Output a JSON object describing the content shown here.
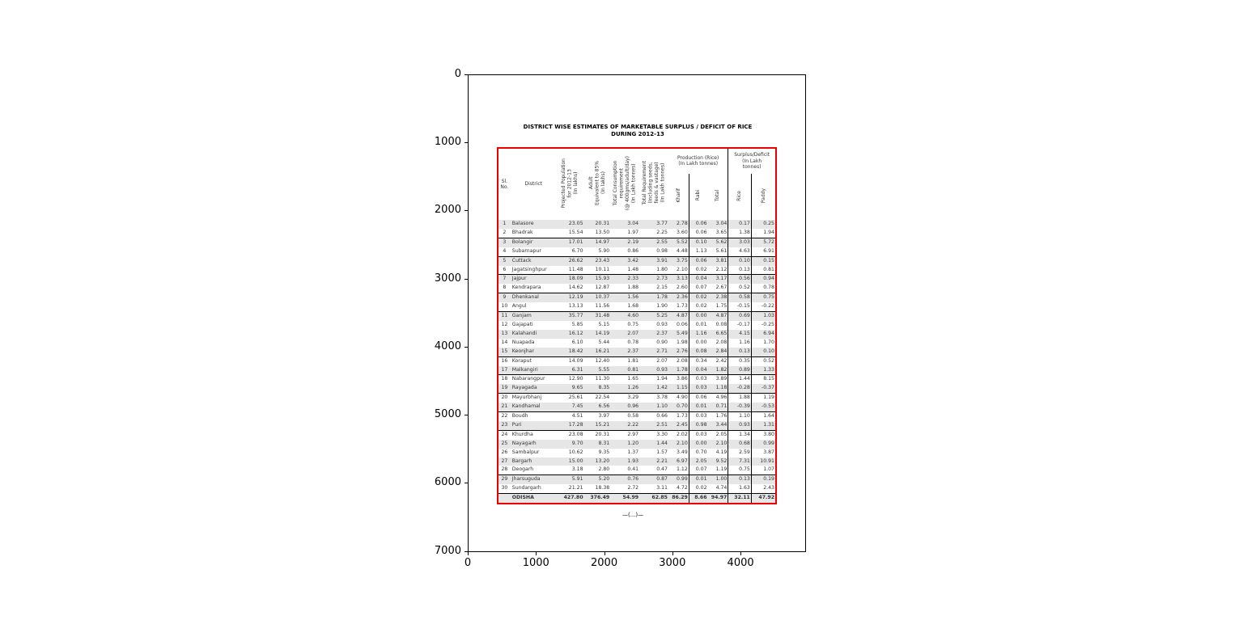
{
  "axes": {
    "xticks": [
      "0",
      "1000",
      "2000",
      "3000",
      "4000"
    ],
    "yticks": [
      "0",
      "1000",
      "2000",
      "3000",
      "4000",
      "5000",
      "6000",
      "7000"
    ],
    "xlim": [
      0,
      4960
    ],
    "ylim": [
      7016,
      0
    ]
  },
  "document": {
    "title_line1": "DISTRICT WISE ESTIMATES OF MARKETABLE SURPLUS / DEFICIT OF RICE",
    "title_line2": "DURING 2012-13",
    "headers": {
      "sl": "Sl.\nNo.",
      "district": "District",
      "population": "Projected Population\nfor 2012-13\n(In lakhs)",
      "adult": "Adult\nEquivalent to 85%\n(In lakhs)",
      "consumption": "Total Consumption\nrequirement\n(@ 400gms/adult/day)\n(In Lakh tonnes)",
      "requirement": "Total Requirement\n(Including seeds,\nfeeds & vastage)\n(In Lakh tonnes)",
      "production": "Production (Rice)\n(In Lakh tonnes)",
      "kharif": "Kharif",
      "rabi": "Rabi",
      "total": "Total",
      "surplus": "Surplus/Deficit\n(In Lakh\ntonnes)",
      "rice": "Rice",
      "paddy": "Paddy"
    },
    "rows": [
      [
        "1",
        "Balasore",
        "23.05",
        "20.31",
        "3.04",
        "3.77",
        "2.78",
        "0.06",
        "3.04",
        "0.17",
        "0.25"
      ],
      [
        "2",
        "Bhadrak",
        "15.54",
        "13.50",
        "1.97",
        "2.25",
        "3.60",
        "0.06",
        "3.65",
        "1.38",
        "1.94"
      ],
      [
        "3",
        "Bolangir",
        "17.01",
        "14.97",
        "2.19",
        "2.55",
        "5.52",
        "0.10",
        "5.62",
        "3.03",
        "5.72"
      ],
      [
        "4",
        "Subarnapur",
        "6.70",
        "5.90",
        "0.86",
        "0.98",
        "4.48",
        "1.13",
        "5.61",
        "4.63",
        "6.91"
      ],
      [
        "5",
        "Cuttack",
        "26.62",
        "23.43",
        "3.42",
        "3.91",
        "3.75",
        "0.06",
        "3.81",
        "0.10",
        "0.15"
      ],
      [
        "6",
        "Jagatsinghpur",
        "11.48",
        "10.11",
        "1.48",
        "1.80",
        "2.10",
        "0.02",
        "2.12",
        "0.13",
        "0.81"
      ],
      [
        "7",
        "Jajpur",
        "18.09",
        "15.93",
        "2.33",
        "2.73",
        "3.13",
        "0.04",
        "3.17",
        "0.56",
        "0.94"
      ],
      [
        "8",
        "Kendrapara",
        "14.62",
        "12.87",
        "1.88",
        "2.15",
        "2.60",
        "0.07",
        "2.67",
        "0.52",
        "0.78"
      ],
      [
        "9",
        "Dhenkanal",
        "12.19",
        "10.37",
        "1.56",
        "1.78",
        "2.36",
        "0.02",
        "2.38",
        "0.58",
        "0.75"
      ],
      [
        "10",
        "Angul",
        "13.13",
        "11.56",
        "1.68",
        "1.90",
        "1.73",
        "0.02",
        "1.75",
        "-0.15",
        "-0.22"
      ],
      [
        "11",
        "Ganjam",
        "35.77",
        "31.48",
        "4.60",
        "5.25",
        "4.87",
        "0.00",
        "4.87",
        "0.69",
        "1.03"
      ],
      [
        "12",
        "Gajapati",
        "5.85",
        "5.15",
        "0.75",
        "0.93",
        "0.06",
        "0.01",
        "0.08",
        "-0.17",
        "-0.25"
      ],
      [
        "13",
        "Kalahandi",
        "16.12",
        "14.19",
        "2.07",
        "2.37",
        "5.49",
        "1.16",
        "6.65",
        "4.15",
        "6.94"
      ],
      [
        "14",
        "Nuapada",
        "6.10",
        "5.44",
        "0.78",
        "0.90",
        "1.98",
        "0.00",
        "2.08",
        "1.16",
        "1.70"
      ],
      [
        "15",
        "Keonjhar",
        "18.42",
        "16.21",
        "2.37",
        "2.71",
        "2.76",
        "0.08",
        "2.84",
        "0.13",
        "0.10"
      ],
      [
        "16",
        "Koraput",
        "14.09",
        "12.40",
        "1.81",
        "2.07",
        "2.08",
        "0.34",
        "2.42",
        "0.35",
        "0.52"
      ],
      [
        "17",
        "Malkangiri",
        "6.31",
        "5.55",
        "0.81",
        "0.93",
        "1.78",
        "0.04",
        "1.82",
        "0.89",
        "1.33"
      ],
      [
        "18",
        "Nabarangpur",
        "12.90",
        "11.30",
        "1.65",
        "1.94",
        "3.86",
        "0.03",
        "3.89",
        "1.44",
        "8.15"
      ],
      [
        "19",
        "Rayagada",
        "9.65",
        "8.35",
        "1.26",
        "1.42",
        "1.15",
        "0.03",
        "1.18",
        "-0.28",
        "-0.37"
      ],
      [
        "20",
        "Mayurbhanj",
        "25.61",
        "22.54",
        "3.29",
        "3.78",
        "4.90",
        "0.06",
        "4.96",
        "1.88",
        "1.19"
      ],
      [
        "21",
        "Kandhamal",
        "7.45",
        "6.56",
        "0.96",
        "1.10",
        "0.70",
        "0.01",
        "0.71",
        "-0.39",
        "-0.53"
      ],
      [
        "22",
        "Boudh",
        "4.51",
        "3.97",
        "0.58",
        "0.66",
        "1.73",
        "0.03",
        "1.76",
        "1.10",
        "1.64"
      ],
      [
        "23",
        "Puri",
        "17.28",
        "15.21",
        "2.22",
        "2.51",
        "2.45",
        "0.98",
        "3.44",
        "0.93",
        "1.31"
      ],
      [
        "24",
        "Khurdha",
        "23.08",
        "20.31",
        "2.97",
        "3.30",
        "2.02",
        "0.03",
        "2.05",
        "1.34",
        "3.80"
      ],
      [
        "25",
        "Nayagarh",
        "9.70",
        "8.31",
        "1.20",
        "1.44",
        "2.10",
        "0.00",
        "2.10",
        "0.68",
        "0.99"
      ],
      [
        "26",
        "Sambalpur",
        "10.62",
        "9.35",
        "1.37",
        "1.57",
        "3.49",
        "0.70",
        "4.19",
        "2.59",
        "3.87"
      ],
      [
        "27",
        "Bargarh",
        "15.00",
        "13.20",
        "1.93",
        "2.21",
        "6.97",
        "2.05",
        "9.52",
        "7.31",
        "10.91"
      ],
      [
        "28",
        "Deogarh",
        "3.18",
        "2.80",
        "0.41",
        "0.47",
        "1.12",
        "0.07",
        "1.19",
        "0.75",
        "1.07"
      ],
      [
        "29",
        "Jharsuguda",
        "5.91",
        "5.20",
        "0.76",
        "0.87",
        "0.99",
        "0.01",
        "1.00",
        "0.13",
        "0.19"
      ],
      [
        "30",
        "Sundargarh",
        "21.21",
        "18.38",
        "2.72",
        "3.11",
        "4.72",
        "0.02",
        "4.74",
        "1.63",
        "2.43"
      ]
    ],
    "total": [
      "",
      "ODISHA",
      "427.80",
      "376.49",
      "54.99",
      "62.85",
      "86.29",
      "8.66",
      "94.97",
      "32.11",
      "47.92"
    ],
    "footer": "—(...)—"
  },
  "colors": {
    "border": "#ee0000",
    "shade": "#e6e6e6"
  }
}
